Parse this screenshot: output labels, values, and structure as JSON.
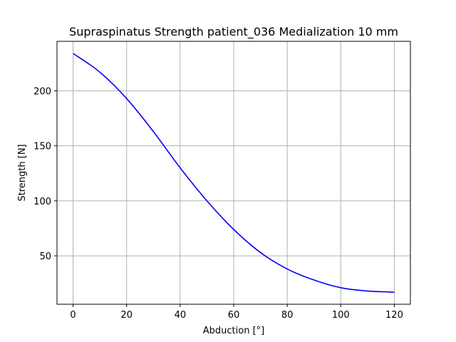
{
  "chart_data": {
    "type": "line",
    "title": "Supraspinatus Strength patient_036 Medialization 10 mm",
    "xlabel": "Abduction [°]",
    "ylabel": "Strength [N]",
    "xlim": [
      -6,
      126
    ],
    "ylim": [
      6,
      245
    ],
    "xticks": [
      0,
      20,
      40,
      60,
      80,
      100,
      120
    ],
    "yticks": [
      50,
      100,
      150,
      200
    ],
    "grid": true,
    "series": [
      {
        "color": "#0000ff",
        "x": [
          0,
          10,
          20,
          30,
          40,
          50,
          60,
          70,
          80,
          90,
          100,
          110,
          120
        ],
        "y": [
          234,
          217,
          193,
          163,
          130,
          100,
          74,
          53,
          38,
          28,
          21,
          18,
          17
        ]
      }
    ]
  }
}
